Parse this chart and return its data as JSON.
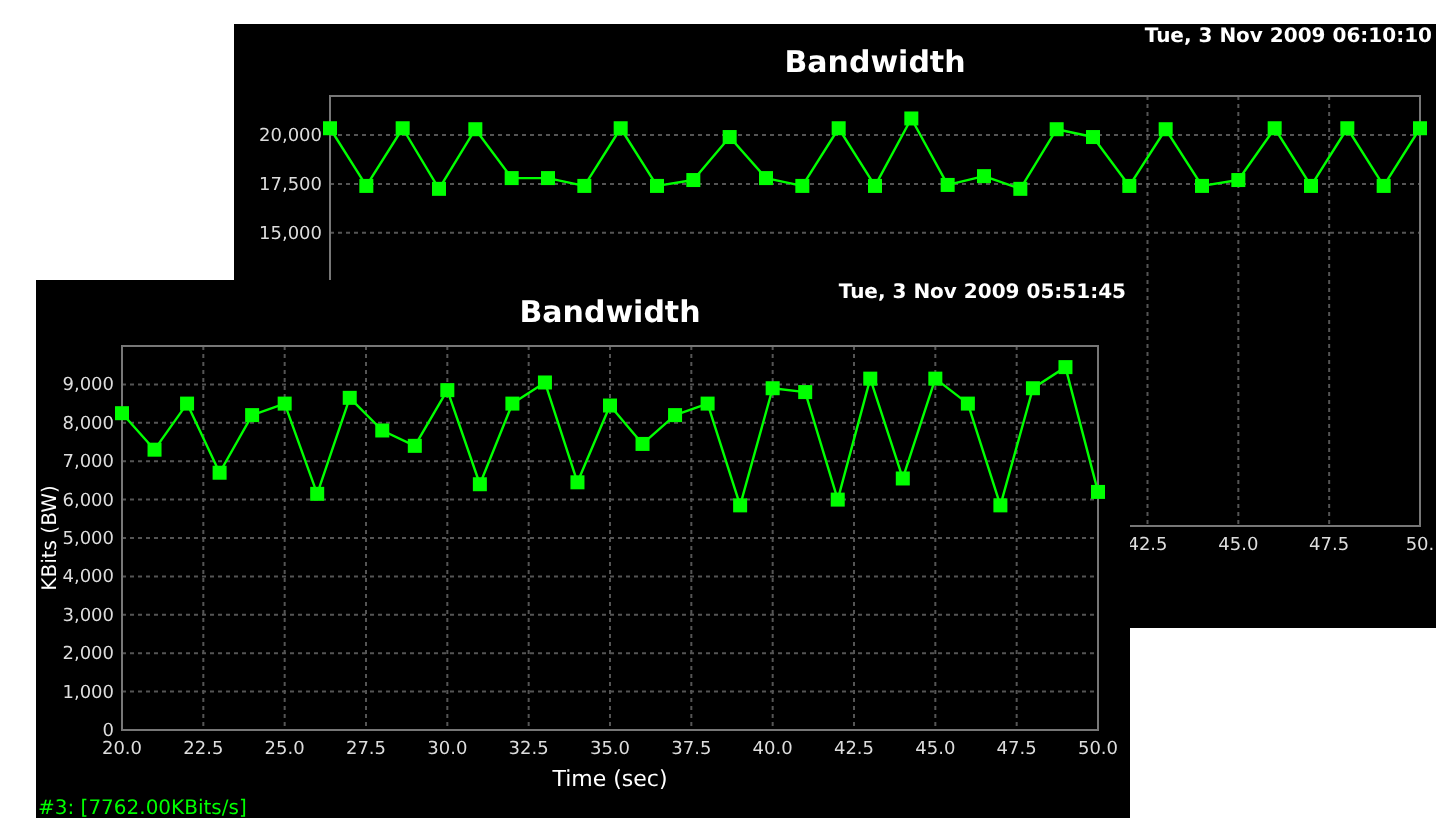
{
  "chart_data": [
    {
      "type": "line",
      "title": "Bandwidth",
      "annotations": [
        "Tue, 3 Nov 2009 06:10:10"
      ],
      "x": [
        20,
        21,
        22,
        23,
        24,
        25,
        26,
        27,
        28,
        29,
        30,
        31,
        32,
        33,
        34,
        35,
        36,
        37,
        38,
        39,
        40,
        41,
        42,
        43,
        44,
        45,
        46,
        47,
        48,
        49,
        50
      ],
      "series": [
        {
          "color": "#00ff00",
          "values": [
            20350,
            17400,
            20350,
            17250,
            20300,
            17800,
            17800,
            17400,
            20350,
            17400,
            17700,
            19900,
            17800,
            17400,
            20350,
            17400,
            20850,
            17450,
            17900,
            17250,
            20300,
            19900,
            17400,
            20300,
            17400,
            17700,
            20350,
            17400,
            20350,
            17400,
            20350
          ]
        }
      ],
      "xlim": [
        20,
        50
      ],
      "xticks": [
        42.5,
        {
          "value": 45,
          "label": "45.0"
        },
        47.5,
        {
          "value": 50,
          "label": "50."
        }
      ],
      "ylim": [
        0,
        22000
      ],
      "yticks": [
        {
          "value": 15000,
          "label": "15,000"
        },
        {
          "value": 17500,
          "label": "17,500"
        },
        {
          "value": 20000,
          "label": "20,000"
        }
      ],
      "grid": true,
      "marker": "square",
      "line_style": "solid"
    },
    {
      "type": "line",
      "title": "Bandwidth",
      "xlabel": "Time (sec)",
      "ylabel": "KBits (BW)",
      "annotations": [
        "Tue, 3 Nov 2009 05:51:45",
        "#3: [7762.00KBits/s]"
      ],
      "x": [
        20,
        21,
        22,
        23,
        24,
        25,
        26,
        27,
        28,
        29,
        30,
        31,
        32,
        33,
        34,
        35,
        36,
        37,
        38,
        39,
        40,
        41,
        42,
        43,
        44,
        45,
        46,
        47,
        48,
        49,
        50
      ],
      "series": [
        {
          "color": "#00ff00",
          "values": [
            8250,
            7300,
            8500,
            6700,
            8200,
            8500,
            6150,
            8650,
            7800,
            7400,
            8850,
            6400,
            8500,
            9050,
            6450,
            8450,
            7450,
            8200,
            8500,
            5850,
            8900,
            8800,
            6000,
            9150,
            6550,
            9150,
            8500,
            5850,
            8900,
            9450,
            6200
          ]
        }
      ],
      "xlim": [
        20,
        50
      ],
      "xticks": [
        {
          "value": 20,
          "label": "20.0"
        },
        {
          "value": 22.5,
          "label": "22.5"
        },
        {
          "value": 25,
          "label": "25.0"
        },
        {
          "value": 27.5,
          "label": "27.5"
        },
        {
          "value": 30,
          "label": "30.0"
        },
        {
          "value": 32.5,
          "label": "32.5"
        },
        {
          "value": 35,
          "label": "35.0"
        },
        {
          "value": 37.5,
          "label": "37.5"
        },
        {
          "value": 40,
          "label": "40.0"
        },
        {
          "value": 42.5,
          "label": "42.5"
        },
        {
          "value": 45,
          "label": "45.0"
        },
        {
          "value": 47.5,
          "label": "47.5"
        },
        {
          "value": 50,
          "label": "50.0"
        }
      ],
      "ylim": [
        0,
        10000
      ],
      "yticks": [
        0,
        {
          "value": 1000,
          "label": "1,000"
        },
        {
          "value": 2000,
          "label": "2,000"
        },
        {
          "value": 3000,
          "label": "3,000"
        },
        {
          "value": 4000,
          "label": "4,000"
        },
        {
          "value": 5000,
          "label": "5,000"
        },
        {
          "value": 6000,
          "label": "6,000"
        },
        {
          "value": 7000,
          "label": "7,000"
        },
        {
          "value": 8000,
          "label": "8,000"
        },
        {
          "value": 9000,
          "label": "9,000"
        }
      ],
      "grid": true,
      "marker": "square",
      "line_style": "solid"
    }
  ]
}
